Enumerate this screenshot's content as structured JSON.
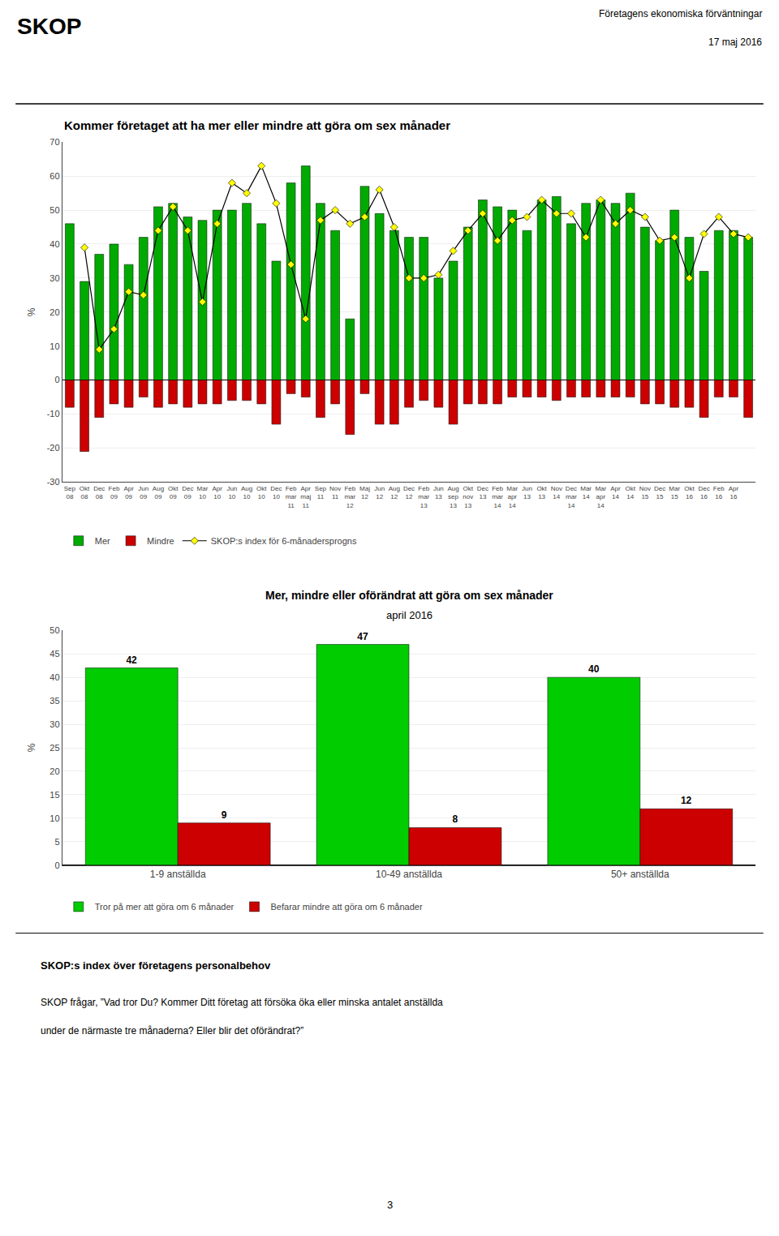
{
  "chart_data": [
    {
      "type": "bar",
      "title": "Kommer företaget att ha mer eller mindre att göra om sex månader",
      "ylabel": "%",
      "annotations": [
        "SKOP",
        "Företagens ekonomiska förväntningar",
        "17 maj 2016"
      ],
      "categories": [
        "Sep\n08",
        "Okt\n08",
        "Dec\n08",
        "Feb\n09",
        "Apr\n09",
        "Jun\n09",
        "Aug\n09",
        "Okt\n09",
        "Dec\n09",
        "Mar\n10",
        "Apr\n10",
        "Jun\n10",
        "Aug\n10",
        "Okt\n10",
        "Dec\n10",
        "Feb\nmar\n11",
        "Apr\nmaj\n11",
        "Sep\n11",
        "Nov\n11",
        "Feb\nmar\n12",
        "Maj\n12",
        "Jun\n12",
        "Aug\n12",
        "Dec\n12",
        "Feb\nmar\n13",
        "Jun\n13",
        "Aug\nsep\n13",
        "Okt\nnov\n13",
        "Dec\n13",
        "Feb\nmar\n14",
        "Mar\napr\n14",
        "Jun\n13",
        "Okt\n13",
        "Nov\n14",
        "Dec\nmar\n14",
        "Mar\n14",
        "Mar\napr\n14",
        "Apr\n14",
        "Okt\n14",
        "Nov\n15",
        "Dec\n15",
        "Mar\n15",
        "Okt\n16",
        "Dec\n16",
        "Feb\n16",
        "Apr\n16",
        null
      ],
      "series": [
        {
          "name": "Mer",
          "color": "#00aa00",
          "values": [
            46,
            29,
            37,
            40,
            34,
            42,
            51,
            52,
            48,
            47,
            50,
            50,
            52,
            46,
            35,
            58,
            63,
            52,
            44,
            18,
            57,
            49,
            44,
            42,
            42,
            30,
            35,
            45,
            53,
            51,
            50,
            44,
            53,
            54,
            46,
            52,
            53,
            52,
            55,
            45,
            41,
            50,
            42,
            32,
            44,
            44,
            42
          ]
        },
        {
          "name": "Mindre",
          "color": "#cc0000",
          "values": [
            -8,
            -21,
            -11,
            -7,
            -8,
            -5,
            -8,
            -7,
            -8,
            -7,
            -7,
            -6,
            -6,
            -7,
            -13,
            -4,
            -5,
            -11,
            -7,
            -16,
            -4,
            -13,
            -13,
            -8,
            -6,
            -8,
            -13,
            -7,
            -7,
            -7,
            -5,
            -5,
            -5,
            -6,
            -5,
            -5,
            -5,
            -5,
            -5,
            -7,
            -7,
            -8,
            -8,
            -11,
            -5,
            -5,
            -11
          ]
        },
        {
          "name": "SKOP:s index för 6-månadersprogns",
          "type": "line",
          "color": "#ffff00",
          "marker": "diamond",
          "values": [
            null,
            39,
            9,
            15,
            26,
            25,
            44,
            51,
            44,
            23,
            46,
            58,
            55,
            63,
            52,
            34,
            18,
            47,
            50,
            46,
            48,
            56,
            45,
            30,
            30,
            31,
            38,
            44,
            49,
            41,
            47,
            48,
            53,
            49,
            49,
            42,
            53,
            46,
            50,
            48,
            41,
            42,
            30,
            43,
            48,
            43,
            42
          ]
        }
      ],
      "ylim": [
        -30,
        70
      ],
      "yticks": [
        -30,
        -20,
        -10,
        0,
        10,
        20,
        30,
        40,
        50,
        60,
        70
      ],
      "grid": true,
      "legend": "bottom"
    },
    {
      "type": "bar",
      "title": "Mer, mindre eller oförändrat att göra om sex månader",
      "subtitle": "april 2016",
      "ylabel": "%",
      "annotations": [
        "SKOP:s index över företagens personalbehov",
        "SKOP frågar, ”Vad tror Du? Kommer Ditt företag att försöka öka eller minska antalet anställda",
        "under de närmaste tre månaderna? Eller blir det oförändrat?”",
        "3"
      ],
      "categories": [
        "1-9 anställda",
        "10-49 anställda",
        "50+ anställda"
      ],
      "series": [
        {
          "name": "Tror på mer att göra om 6 månader",
          "color": "#00cc00",
          "values": [
            42,
            47,
            40
          ]
        },
        {
          "name": "Befarar mindre att göra om 6 månader",
          "color": "#cc0000",
          "values": [
            9,
            8,
            12
          ]
        }
      ],
      "ylim": [
        0,
        50
      ],
      "yticks": [
        0,
        5,
        10,
        15,
        20,
        25,
        30,
        35,
        40,
        45,
        50
      ],
      "grid": true,
      "data_labels": true,
      "legend": "bottom"
    }
  ]
}
